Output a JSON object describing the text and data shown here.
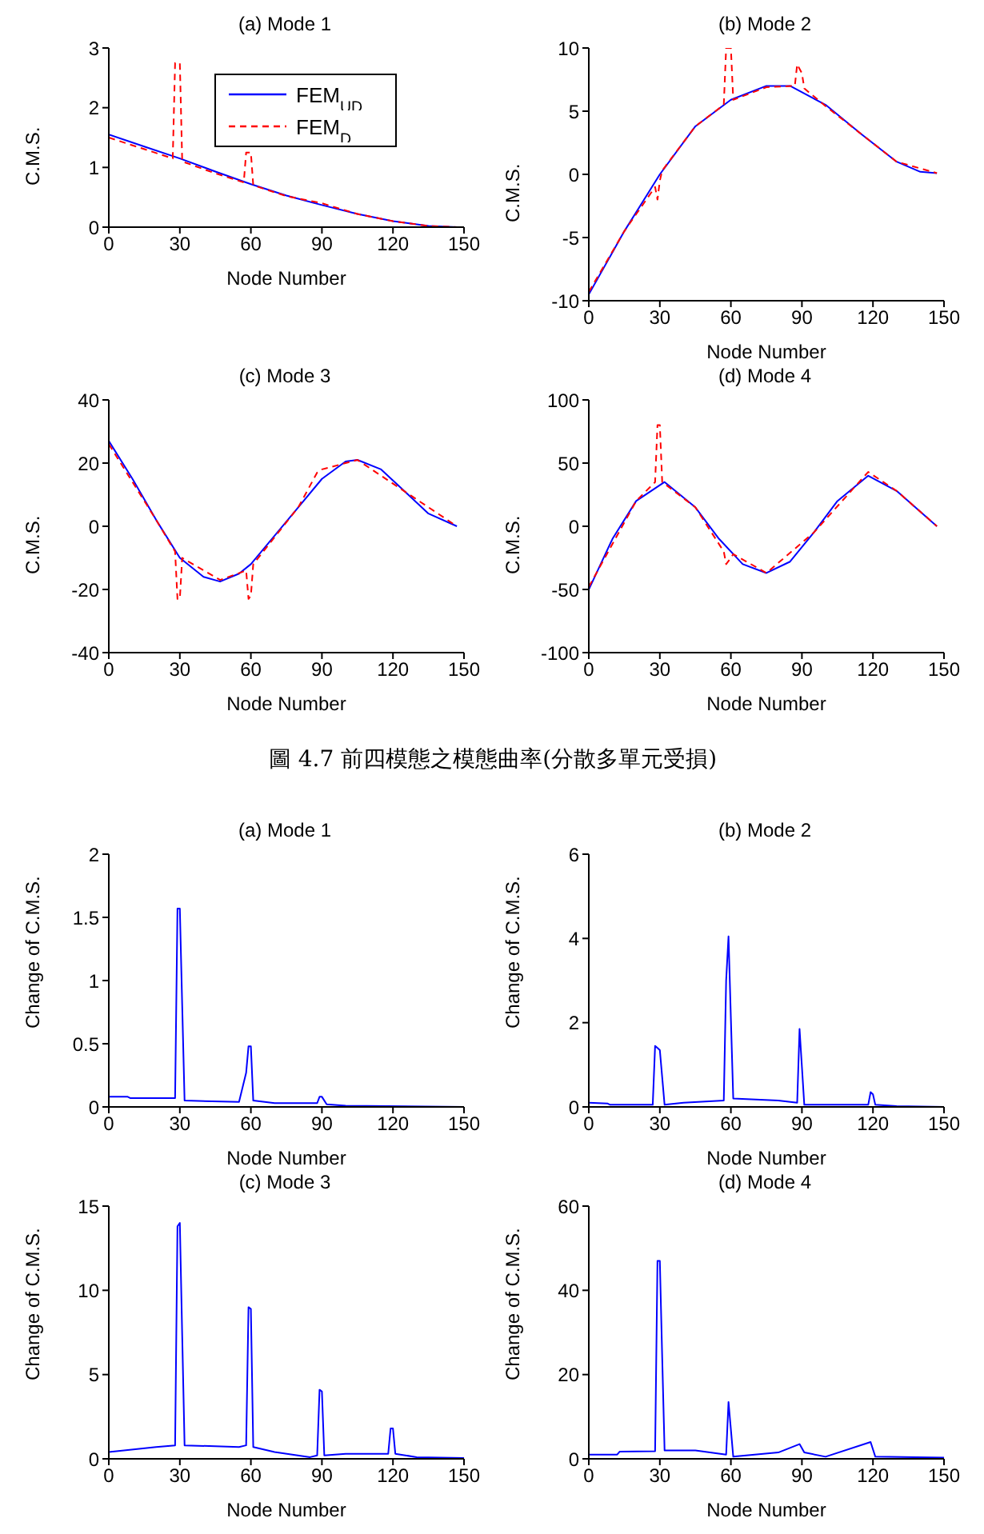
{
  "chart_data": [
    {
      "type": "line",
      "title": "(a) Mode 1",
      "xlabel": "Node Number",
      "ylabel": "C.M.S.",
      "xlim": [
        0,
        150
      ],
      "xticks": [
        0,
        30,
        60,
        90,
        120,
        150
      ],
      "ylim": [
        0,
        3
      ],
      "yticks": [
        0,
        1,
        2,
        3
      ],
      "grid": false,
      "legend": "top right",
      "marker": "none",
      "series": [
        {
          "name": "FEM$_{UD}$",
          "color": "#0000ff",
          "line_style": "solid",
          "x": [
            0,
            15,
            30,
            45,
            60,
            75,
            90,
            105,
            120,
            135,
            147
          ],
          "values": [
            1.55,
            1.35,
            1.15,
            0.93,
            0.72,
            0.53,
            0.37,
            0.22,
            0.1,
            0.02,
            0
          ]
        },
        {
          "name": "FEM$_{D}$",
          "color": "#ff0000",
          "line_style": "dashed",
          "x": [
            0,
            27,
            28,
            30,
            31,
            45,
            57,
            58,
            60,
            61,
            75,
            90,
            105,
            120,
            135,
            147
          ],
          "values": [
            1.5,
            1.15,
            2.75,
            2.75,
            1.1,
            0.9,
            0.75,
            1.25,
            1.25,
            0.7,
            0.52,
            0.4,
            0.22,
            0.1,
            0.02,
            0
          ]
        }
      ]
    },
    {
      "type": "line",
      "title": "(b) Mode 2",
      "xlabel": "Node Number",
      "ylabel": "C.M.S.",
      "xlim": [
        0,
        150
      ],
      "xticks": [
        0,
        30,
        60,
        90,
        120,
        150
      ],
      "ylim": [
        -10,
        10
      ],
      "yticks": [
        -10,
        -5,
        0,
        5,
        10
      ],
      "grid": false,
      "legend": false,
      "marker": "none",
      "series": [
        {
          "color": "#0000ff",
          "line_style": "solid",
          "x": [
            0,
            15,
            30,
            45,
            60,
            75,
            85,
            100,
            115,
            130,
            140,
            147
          ],
          "values": [
            -9.5,
            -4.5,
            0,
            3.8,
            5.9,
            7,
            7,
            5.5,
            3.2,
            1,
            0.2,
            0.1
          ]
        },
        {
          "color": "#ff0000",
          "line_style": "dashed",
          "x": [
            0,
            15,
            28,
            29,
            30,
            31,
            45,
            57,
            58,
            60,
            61,
            75,
            87,
            88,
            90,
            91,
            100,
            115,
            130,
            147
          ],
          "values": [
            -9.3,
            -4.5,
            -1,
            -2,
            -0.5,
            0.3,
            3.8,
            5.5,
            10,
            10,
            5.9,
            6.9,
            7,
            8.7,
            8,
            6.8,
            5.4,
            3.2,
            1,
            0.1
          ]
        }
      ]
    },
    {
      "type": "line",
      "title": "(c) Mode 3",
      "xlabel": "Node Number",
      "ylabel": "C.M.S.",
      "xlim": [
        0,
        150
      ],
      "xticks": [
        0,
        30,
        60,
        90,
        120,
        150
      ],
      "ylim": [
        -40,
        40
      ],
      "yticks": [
        -40,
        -20,
        0,
        20,
        40
      ],
      "grid": false,
      "legend": false,
      "marker": "none",
      "series": [
        {
          "color": "#0000ff",
          "line_style": "solid",
          "x": [
            0,
            10,
            20,
            30,
            40,
            47,
            55,
            60,
            70,
            80,
            90,
            100,
            105,
            115,
            125,
            135,
            147
          ],
          "values": [
            27,
            15,
            2,
            -10,
            -16,
            -17.5,
            -15,
            -12,
            -3,
            6,
            15,
            20.5,
            21,
            18,
            11,
            4,
            0
          ]
        },
        {
          "color": "#ff0000",
          "line_style": "dashed",
          "x": [
            0,
            20,
            28,
            29,
            30,
            31,
            47,
            58,
            59,
            60,
            61,
            80,
            88,
            90,
            105,
            125,
            147
          ],
          "values": [
            26,
            2,
            -8,
            -23,
            -23,
            -10,
            -17,
            -14,
            -23,
            -22,
            -12,
            6,
            17,
            18,
            21,
            11,
            0
          ]
        }
      ]
    },
    {
      "type": "line",
      "title": "(d) Mode 4",
      "xlabel": "Node Number",
      "ylabel": "C.M.S.",
      "xlim": [
        0,
        150
      ],
      "xticks": [
        0,
        30,
        60,
        90,
        120,
        150
      ],
      "ylim": [
        -100,
        100
      ],
      "yticks": [
        -100,
        -50,
        0,
        50,
        100
      ],
      "grid": false,
      "legend": false,
      "marker": "none",
      "annotations": [
        "圖 4.7 前四模態之模態曲率(分散多單元受損)"
      ],
      "series": [
        {
          "color": "#0000ff",
          "line_style": "solid",
          "x": [
            0,
            10,
            20,
            32,
            45,
            55,
            65,
            75,
            85,
            95,
            105,
            118,
            130,
            147
          ],
          "values": [
            -50,
            -10,
            20,
            35,
            15,
            -10,
            -30,
            -37,
            -28,
            -5,
            20,
            40,
            28,
            0
          ]
        },
        {
          "color": "#ff0000",
          "line_style": "dashed",
          "x": [
            0,
            20,
            28,
            29,
            30,
            31,
            45,
            57,
            58,
            60,
            61,
            75,
            95,
            118,
            130,
            147
          ],
          "values": [
            -48,
            20,
            35,
            80,
            80,
            35,
            15,
            -20,
            -30,
            -25,
            -22,
            -37,
            -5,
            43,
            28,
            0
          ]
        }
      ]
    },
    {
      "type": "line",
      "title": "(a) Mode 1",
      "xlabel": "Node Number",
      "ylabel": "Change of C.M.S.",
      "xlim": [
        0,
        150
      ],
      "xticks": [
        0,
        30,
        60,
        90,
        120,
        150
      ],
      "ylim": [
        0,
        2
      ],
      "yticks": [
        0,
        0.5,
        1,
        1.5,
        2
      ],
      "grid": false,
      "legend": false,
      "marker": "none",
      "series": [
        {
          "color": "#0000ff",
          "line_style": "solid",
          "x": [
            0,
            8,
            9,
            28,
            29,
            30,
            31,
            32,
            55,
            58,
            59,
            60,
            61,
            70,
            88,
            89,
            90,
            92,
            100,
            150
          ],
          "values": [
            0.08,
            0.08,
            0.07,
            0.07,
            1.57,
            1.57,
            0.8,
            0.05,
            0.04,
            0.27,
            0.48,
            0.48,
            0.05,
            0.03,
            0.03,
            0.08,
            0.08,
            0.02,
            0.01,
            0
          ]
        }
      ]
    },
    {
      "type": "line",
      "title": "(b) Mode 2",
      "xlabel": "Node Number",
      "ylabel": "Change of C.M.S.",
      "xlim": [
        0,
        150
      ],
      "xticks": [
        0,
        30,
        60,
        90,
        120,
        150
      ],
      "ylim": [
        0,
        6
      ],
      "yticks": [
        0,
        2,
        4,
        6
      ],
      "grid": false,
      "legend": false,
      "marker": "none",
      "series": [
        {
          "color": "#0000ff",
          "line_style": "solid",
          "x": [
            0,
            8,
            9,
            27,
            28,
            29,
            30,
            31,
            32,
            40,
            57,
            58,
            59,
            60,
            61,
            80,
            88,
            89,
            90,
            91,
            118,
            119,
            120,
            121,
            130,
            150
          ],
          "values": [
            0.1,
            0.08,
            0.05,
            0.05,
            1.45,
            1.4,
            1.35,
            0.7,
            0.05,
            0.1,
            0.15,
            3,
            4.05,
            2.1,
            0.2,
            0.15,
            0.1,
            1.85,
            0.95,
            0.05,
            0.05,
            0.35,
            0.3,
            0.05,
            0.02,
            0
          ]
        }
      ]
    },
    {
      "type": "line",
      "title": "(c) Mode 3",
      "xlabel": "Node Number",
      "ylabel": "Change of C.M.S.",
      "xlim": [
        0,
        150
      ],
      "xticks": [
        0,
        30,
        60,
        90,
        120,
        150
      ],
      "ylim": [
        0,
        15
      ],
      "yticks": [
        0,
        5,
        10,
        15
      ],
      "grid": false,
      "legend": false,
      "marker": "none",
      "series": [
        {
          "color": "#0000ff",
          "line_style": "solid",
          "x": [
            0,
            20,
            28,
            29,
            30,
            31,
            32,
            55,
            58,
            59,
            60,
            61,
            70,
            85,
            88,
            89,
            90,
            91,
            100,
            118,
            119,
            120,
            121,
            130,
            150
          ],
          "values": [
            0.4,
            0.7,
            0.8,
            13.8,
            14,
            7.3,
            0.8,
            0.7,
            0.8,
            9,
            8.9,
            0.7,
            0.4,
            0.1,
            0.2,
            4.1,
            4,
            0.2,
            0.3,
            0.3,
            1.8,
            1.8,
            0.3,
            0.1,
            0.05
          ]
        }
      ]
    },
    {
      "type": "line",
      "title": "(d) Mode 4",
      "xlabel": "Node Number",
      "ylabel": "Change of C.M.S.",
      "xlim": [
        0,
        150
      ],
      "xticks": [
        0,
        30,
        60,
        90,
        120,
        150
      ],
      "ylim": [
        0,
        60
      ],
      "yticks": [
        0,
        20,
        40,
        60
      ],
      "grid": false,
      "legend": false,
      "marker": "none",
      "series": [
        {
          "color": "#0000ff",
          "line_style": "solid",
          "x": [
            0,
            12,
            13,
            28,
            29,
            30,
            31,
            32,
            45,
            58,
            59,
            60,
            61,
            80,
            89,
            91,
            100,
            119,
            121,
            150
          ],
          "values": [
            1,
            1,
            1.7,
            1.8,
            47,
            47,
            24,
            2,
            2,
            1,
            13.5,
            7,
            0.5,
            1.5,
            3.5,
            1.5,
            0.5,
            4,
            0.5,
            0.3
          ]
        }
      ]
    }
  ]
}
